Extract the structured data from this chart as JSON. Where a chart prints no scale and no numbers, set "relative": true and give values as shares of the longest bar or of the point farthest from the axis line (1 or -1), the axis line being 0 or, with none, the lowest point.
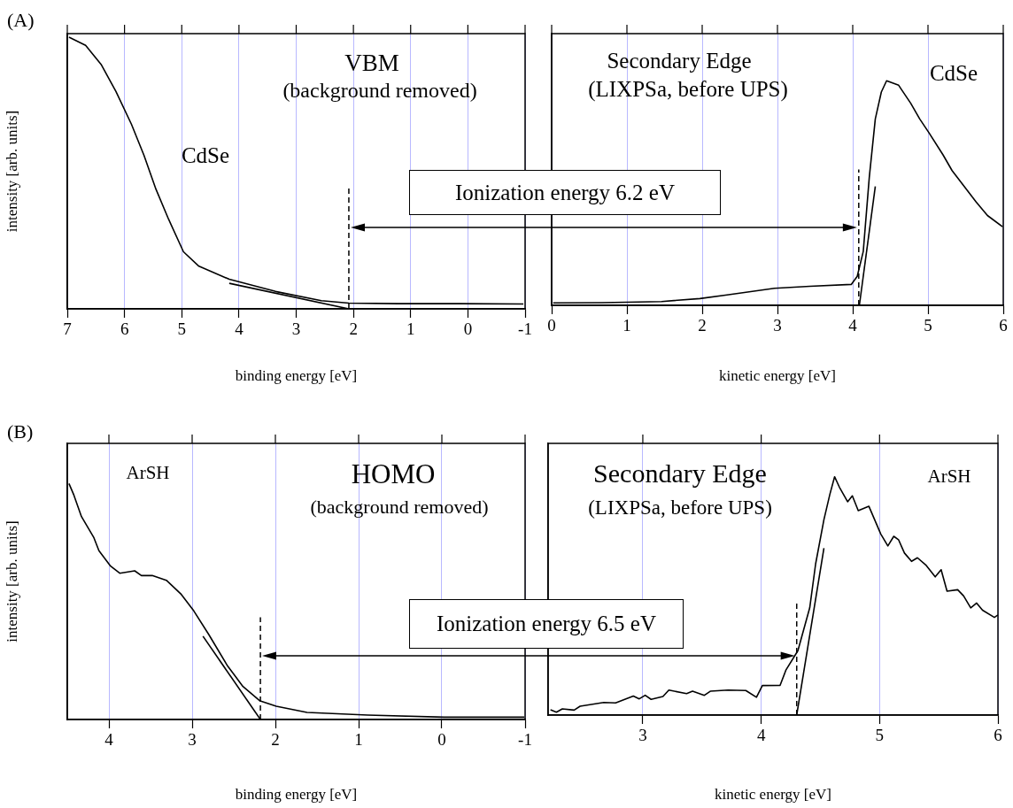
{
  "chart_data": [
    {
      "type": "line",
      "title": "(A)",
      "xlabel": "binding energy [eV]",
      "ylabel": "intensity [arb. units]",
      "relative": true,
      "xlim": [
        7,
        -1
      ],
      "xticks": [
        7,
        6,
        5,
        4,
        3,
        2,
        1,
        0,
        -1
      ],
      "grid": "x",
      "legend": false,
      "marker": "none",
      "series": [
        {
          "color": "#000000",
          "x": [
            6.97,
            6.68,
            6.41,
            6.15,
            5.88,
            5.66,
            5.45,
            5.23,
            4.97,
            4.7,
            4.17,
            3.36,
            2.56,
            2.08,
            1.22,
            0.15,
            -0.97
          ],
          "values": [
            1.0,
            0.97,
            0.9,
            0.8,
            0.68,
            0.565,
            0.44,
            0.33,
            0.21,
            0.157,
            0.109,
            0.064,
            0.03,
            0.021,
            0.019,
            0.019,
            0.018
          ]
        },
        {
          "type": "line",
          "color": "#000000",
          "x": [
            4.17,
            2.08
          ],
          "values": [
            0.094,
            0.0
          ]
        }
      ],
      "ref_lines": [
        {
          "axis": "x",
          "value": 2.08,
          "line_style": "dashed",
          "color": "#000000"
        }
      ],
      "annotations": [
        "VBM",
        "(background removed)",
        "CdSe",
        "Ionization energy 6.2 eV"
      ]
    },
    {
      "type": "line",
      "xlabel": "kinetic energy [eV]",
      "relative": true,
      "xlim": [
        0,
        6
      ],
      "xticks": [
        0,
        1,
        2,
        3,
        4,
        5,
        6
      ],
      "grid": "x",
      "legend": false,
      "marker": "none",
      "series": [
        {
          "color": "#000000",
          "x": [
            0.02,
            0.67,
            1.46,
            1.97,
            2.33,
            2.96,
            3.43,
            3.98,
            4.06,
            4.14,
            4.22,
            4.3,
            4.38,
            4.45,
            4.61,
            4.77,
            4.89,
            5.01,
            5.2,
            5.32,
            5.48,
            5.64,
            5.79,
            5.99
          ],
          "values": [
            0.011,
            0.012,
            0.017,
            0.03,
            0.046,
            0.076,
            0.085,
            0.093,
            0.129,
            0.24,
            0.57,
            0.83,
            0.95,
            1.0,
            0.98,
            0.9,
            0.83,
            0.77,
            0.67,
            0.6,
            0.53,
            0.46,
            0.4,
            0.35
          ]
        },
        {
          "type": "line",
          "color": "#000000",
          "x": [
            4.09,
            4.3
          ],
          "values": [
            0.004,
            0.53
          ]
        }
      ],
      "ref_lines": [
        {
          "axis": "x",
          "value": 4.08,
          "line_style": "dashed",
          "color": "#000000"
        }
      ],
      "annotations": [
        "Secondary Edge",
        "(LIXPSa, before UPS)",
        "CdSe"
      ]
    },
    {
      "type": "line",
      "title": "(B)",
      "xlabel": "binding energy [eV]",
      "ylabel": "intensity [arb. units]",
      "relative": true,
      "xlim": [
        4.5,
        -1
      ],
      "xticks": [
        4,
        3,
        2,
        1,
        0,
        -1
      ],
      "grid": "x",
      "legend": false,
      "marker": "none",
      "series": [
        {
          "color": "#000000",
          "x": [
            4.48,
            4.42,
            4.33,
            4.18,
            4.12,
            3.98,
            3.87,
            3.69,
            3.61,
            3.48,
            3.31,
            3.13,
            2.98,
            2.8,
            2.58,
            2.39,
            2.19,
            1.99,
            1.62,
            0.89,
            -0.03,
            -0.99
          ],
          "values": [
            1.0,
            0.95,
            0.86,
            0.77,
            0.715,
            0.65,
            0.62,
            0.63,
            0.61,
            0.61,
            0.59,
            0.53,
            0.46,
            0.36,
            0.23,
            0.14,
            0.08,
            0.056,
            0.03,
            0.019,
            0.01,
            0.01
          ]
        },
        {
          "type": "line",
          "color": "#000000",
          "x": [
            2.87,
            2.18
          ],
          "values": [
            0.353,
            0.0
          ]
        }
      ],
      "ref_lines": [
        {
          "axis": "x",
          "value": 2.18,
          "line_style": "dashed",
          "color": "#000000"
        }
      ],
      "annotations": [
        "ArSH",
        "HOMO",
        "(background removed)",
        "Ionization energy 6.5 eV"
      ]
    },
    {
      "type": "line",
      "xlabel": "kinetic energy [eV]",
      "relative": true,
      "xlim": [
        2.2,
        6
      ],
      "xticks": [
        3,
        4,
        5,
        6
      ],
      "grid": "x",
      "legend": false,
      "marker": "none",
      "series": [
        {
          "color": "#000000",
          "x": [
            2.22,
            2.27,
            2.32,
            2.42,
            2.47,
            2.67,
            2.77,
            2.92,
            2.97,
            3.02,
            3.07,
            3.17,
            3.22,
            3.37,
            3.42,
            3.52,
            3.57,
            3.72,
            3.87,
            3.96,
            4.01,
            4.16,
            4.21,
            4.31,
            4.36,
            4.41,
            4.46,
            4.53,
            4.58,
            4.62,
            4.66,
            4.73,
            4.77,
            4.82,
            4.91,
            5.01,
            5.07,
            5.12,
            5.16,
            5.21,
            5.27,
            5.32,
            5.39,
            5.47,
            5.52,
            5.57,
            5.66,
            5.71,
            5.77,
            5.82,
            5.87,
            5.97,
            6.0
          ],
          "values": [
            0.022,
            0.012,
            0.026,
            0.021,
            0.037,
            0.053,
            0.051,
            0.08,
            0.068,
            0.083,
            0.066,
            0.078,
            0.105,
            0.09,
            0.1,
            0.083,
            0.1,
            0.105,
            0.103,
            0.075,
            0.124,
            0.125,
            0.19,
            0.27,
            0.36,
            0.45,
            0.635,
            0.82,
            0.926,
            1.0,
            0.957,
            0.895,
            0.92,
            0.858,
            0.876,
            0.76,
            0.71,
            0.75,
            0.736,
            0.68,
            0.645,
            0.66,
            0.63,
            0.58,
            0.61,
            0.52,
            0.526,
            0.5,
            0.45,
            0.47,
            0.44,
            0.41,
            0.42
          ]
        },
        {
          "type": "line",
          "color": "#000000",
          "x": [
            4.3,
            4.53
          ],
          "values": [
            0.0,
            0.7
          ]
        }
      ],
      "ref_lines": [
        {
          "axis": "x",
          "value": 4.3,
          "line_style": "dashed",
          "color": "#000000"
        }
      ],
      "annotations": [
        "Secondary Edge",
        "(LIXPSa, before UPS)",
        "ArSH"
      ]
    }
  ]
}
